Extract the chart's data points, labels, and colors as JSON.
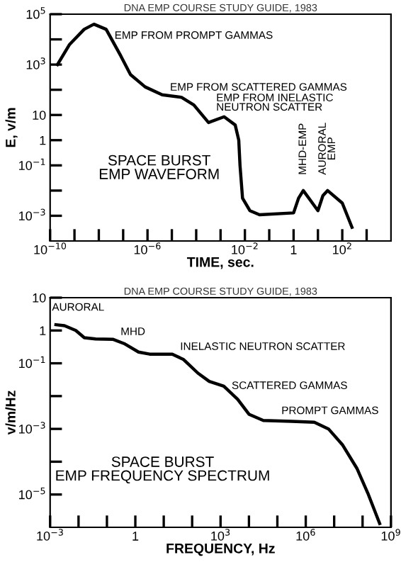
{
  "chart_data": [
    {
      "type": "line",
      "title": "DNA EMP COURSE STUDY GUIDE, 1983",
      "xlabel": "TIME, sec.",
      "ylabel": "E, v/m",
      "log": "xy",
      "grid": false,
      "legend": false,
      "marker": "none",
      "line_style": "solid",
      "xlim": [
        1e-10,
        10000
      ],
      "ylim": [
        0.0001,
        100000
      ],
      "xticks": [
        {
          "value": 1e-10,
          "label": "10$^{−10}$"
        },
        {
          "value": 1e-09,
          "label": null
        },
        {
          "value": 1e-08,
          "label": null
        },
        {
          "value": 1e-07,
          "label": null
        },
        {
          "value": 1e-06,
          "label": "10$^{−6}$"
        },
        {
          "value": 1e-05,
          "label": null
        },
        {
          "value": 0.0001,
          "label": null
        },
        {
          "value": 0.001,
          "label": null
        },
        {
          "value": 0.01,
          "label": "10$^{−2}$"
        },
        {
          "value": 0.1,
          "label": null
        },
        1,
        {
          "value": 10,
          "label": null
        },
        {
          "value": 100,
          "label": "10$^{2}$"
        },
        {
          "value": 1000,
          "label": null
        }
      ],
      "yticks": [
        {
          "value": 100000,
          "label": "10$^{5}$"
        },
        {
          "value": 10000,
          "label": null
        },
        {
          "value": 1000,
          "label": "10$^{3}$"
        },
        {
          "value": 100,
          "label": null
        },
        10,
        1,
        {
          "value": 0.1,
          "label": "10$^{−1}$"
        },
        {
          "value": 0.01,
          "label": null
        },
        {
          "value": 0.001,
          "label": "10$^{−3}$"
        }
      ],
      "series": [
        {
          "color": "#000000",
          "x": [
            2e-10,
            6.3e-10,
            2.5e-09,
            6.3e-09,
            2e-08,
            8e-08,
            2e-07,
            8e-07,
            4e-06,
            2.5e-05,
            8e-05,
            0.00032,
            0.0014,
            0.004,
            0.0056,
            0.0063,
            0.008,
            0.016,
            0.04,
            1,
            1.6,
            2.5,
            5,
            10,
            16,
            25,
            100,
            250
          ],
          "values": [
            1000,
            6300,
            25000,
            40000,
            25000,
            2200,
            400,
            130,
            63,
            50,
            25,
            5,
            8.5,
            4,
            1,
            0.1,
            0.005,
            0.0016,
            0.0011,
            0.0013,
            0.005,
            0.01,
            0.004,
            0.0016,
            0.0063,
            0.01,
            0.0032,
            0.00035
          ]
        }
      ],
      "annotations": [
        {
          "text": "EMP FROM PROMPT GAMMAS",
          "x": 1e-08,
          "y": 40000
        },
        {
          "text": "EMP FROM SCATTERED GAMMAS",
          "x": 4e-06,
          "y": 63
        },
        {
          "text": "EMP FROM INELASTIC\nNEUTRON SCATTER",
          "x": 0.0014,
          "y": 8.5
        },
        {
          "text": "MHD-EMP",
          "x": 2.5,
          "y": 0.01
        },
        {
          "text": "AURORAL\nEMP",
          "x": 25,
          "y": 0.01
        },
        "SPACE BURST\nEMP WAVEFORM"
      ]
    },
    {
      "type": "line",
      "title": "DNA EMP COURSE STUDY GUIDE, 1983",
      "xlabel": "FREQUENCY, Hz",
      "ylabel": "v/m/Hz",
      "log": "xy",
      "grid": false,
      "legend": false,
      "marker": "none",
      "line_style": "solid",
      "xlim": [
        0.001,
        1000000000
      ],
      "ylim": [
        1e-06,
        10
      ],
      "xticks": [
        {
          "value": 0.001,
          "label": "10$^{−3}$"
        },
        {
          "value": 0.01,
          "label": null
        },
        {
          "value": 0.1,
          "label": null
        },
        1,
        {
          "value": 10,
          "label": null
        },
        {
          "value": 100,
          "label": null
        },
        {
          "value": 1000,
          "label": "10$^{3}$"
        },
        {
          "value": 10000,
          "label": null
        },
        {
          "value": 100000,
          "label": null
        },
        {
          "value": 1000000,
          "label": "10$^{6}$"
        },
        {
          "value": 10000000,
          "label": null
        },
        {
          "value": 100000000,
          "label": null
        },
        {
          "value": 1000000000,
          "label": "10$^{9}$"
        }
      ],
      "yticks": [
        10,
        1,
        {
          "value": 0.1,
          "label": "10$^{−1}$"
        },
        {
          "value": 0.01,
          "label": null
        },
        {
          "value": 0.001,
          "label": "10$^{−3}$"
        },
        {
          "value": 0.0001,
          "label": null
        },
        {
          "value": 1e-05,
          "label": "10$^{−5}$"
        }
      ],
      "series": [
        {
          "color": "#000000",
          "x": [
            0.0016,
            0.0032,
            0.008,
            0.016,
            0.04,
            0.16,
            0.4,
            1.3,
            3.2,
            20,
            50,
            160,
            400,
            1300,
            4000,
            10000,
            32000,
            320000,
            2000000,
            6300000,
            20000000,
            63000000,
            160000000,
            400000000
          ],
          "values": [
            1.5,
            1.4,
            1,
            0.6,
            0.55,
            0.54,
            0.4,
            0.22,
            0.19,
            0.19,
            0.13,
            0.05,
            0.028,
            0.02,
            0.008,
            0.0028,
            0.0018,
            0.0017,
            0.0016,
            0.001,
            0.00032,
            6.3e-05,
            1e-05,
            1.3e-06
          ]
        }
      ],
      "annotations": [
        {
          "text": "AURORAL",
          "x": 0.0016,
          "y": 1.5
        },
        {
          "text": "MHD",
          "x": 0.16,
          "y": 0.54
        },
        {
          "text": "INELASTIC NEUTRON SCATTER",
          "x": 20,
          "y": 0.19
        },
        {
          "text": "SCATTERED GAMMAS",
          "x": 1300,
          "y": 0.02
        },
        {
          "text": "PROMPT GAMMAS",
          "x": 2000000,
          "y": 0.0016
        },
        "SPACE BURST\nEMP FREQUENCY SPECTRUM"
      ]
    }
  ]
}
